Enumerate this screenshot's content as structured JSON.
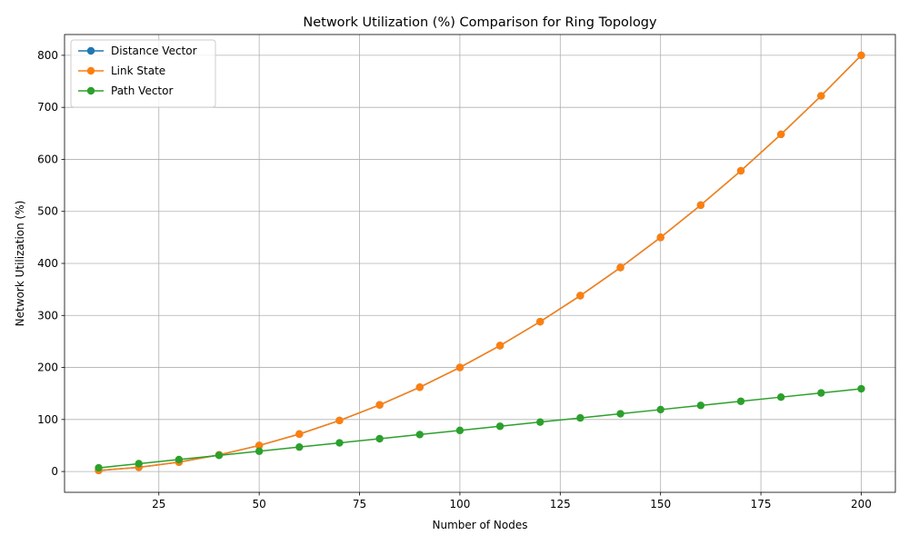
{
  "chart_data": {
    "type": "line",
    "title": "Network Utilization (%) Comparison for Ring Topology",
    "xlabel": "Number of Nodes",
    "ylabel": "Network Utilization (%)",
    "xlim": [
      1.5,
      208.5
    ],
    "ylim": [
      -40,
      840
    ],
    "xticks": [
      25,
      50,
      75,
      100,
      125,
      150,
      175,
      200
    ],
    "yticks": [
      0,
      100,
      200,
      300,
      400,
      500,
      600,
      700,
      800
    ],
    "grid": true,
    "legend_position": "top-left",
    "x": [
      10,
      20,
      30,
      40,
      50,
      60,
      70,
      80,
      90,
      100,
      110,
      120,
      130,
      140,
      150,
      160,
      170,
      180,
      190,
      200
    ],
    "series": [
      {
        "name": "Distance Vector",
        "color": "#1f77b4",
        "values": [
          2,
          8,
          18,
          32,
          50,
          72,
          98,
          128,
          162,
          200,
          242,
          288,
          338,
          392,
          450,
          512,
          578,
          648,
          722,
          800
        ]
      },
      {
        "name": "Link State",
        "color": "#ff7f0e",
        "values": [
          2,
          8,
          18,
          32,
          50,
          72,
          98,
          128,
          162,
          200,
          242,
          288,
          338,
          392,
          450,
          512,
          578,
          648,
          722,
          800
        ]
      },
      {
        "name": "Path Vector",
        "color": "#2ca02c",
        "values": [
          7,
          15,
          23,
          31,
          39,
          47,
          55,
          63,
          71,
          79,
          87,
          95,
          103,
          111,
          119,
          127,
          135,
          143,
          151,
          159
        ]
      }
    ]
  }
}
